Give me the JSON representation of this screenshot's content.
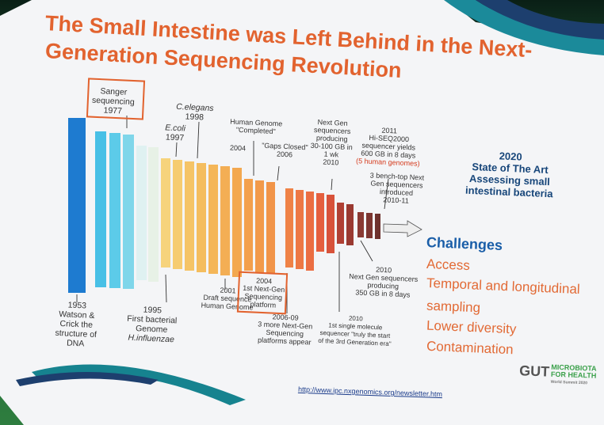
{
  "slide": {
    "title_line1": "The Small Intestine was Left Behind in the Next-",
    "title_line2": "Generation Sequencing Revolution",
    "url": "http://www.ipc.nxgenomics.org/newsletter.htm",
    "logo": {
      "text": "GUT",
      "sub1": "MICROBIOTA",
      "sub2": "FOR HEALTH",
      "sub3": "World Summit 2020"
    }
  },
  "timeline": {
    "sanger": [
      "Sanger",
      "sequencing",
      "1977"
    ],
    "celegans": [
      "C.elegans",
      "1998"
    ],
    "ecoli": [
      "E.coli",
      "1997"
    ],
    "human_genome_completed": [
      "Human Genome",
      "\"Completed\""
    ],
    "y2004": "2004",
    "gaps_closed": [
      "\"Gaps Closed\"",
      "2006"
    ],
    "next_gen_2010": [
      "Next Gen",
      "sequencers",
      "producing",
      "30-100 GB in",
      "1 wk",
      "2010"
    ],
    "hiseq": [
      "2011",
      "Hi-SEQ2000",
      "sequencer yields",
      "600 GB in 8 days"
    ],
    "hiseq_red": "(5 human genomes)",
    "benchtop": [
      "3 bench-top Next",
      "Gen sequencers",
      "introduced",
      "2010-11"
    ],
    "watson_crick": [
      "1953",
      "Watson &",
      "Crick the",
      "structure of",
      "DNA"
    ],
    "first_bacterial": [
      "1995",
      "First bacterial",
      "Genome"
    ],
    "h_influenzae": "H.influenzae",
    "draft_sequence": [
      "2001",
      "Draft sequence",
      "Human Genome"
    ],
    "first_ng_platform": [
      "2004",
      "1st Next-Gen",
      "Sequencing",
      "platform"
    ],
    "three_more": [
      "2006-09",
      "3 more Next-Gen",
      "Sequencing",
      "platforms appear"
    ],
    "single_molecule": [
      "2010",
      "1st single molecule",
      "sequencer \"truly the start",
      "of the 3rd Generation era\""
    ],
    "ng_350": [
      "2010",
      "Next Gen sequencers",
      "producing",
      "350 GB in 8 days"
    ]
  },
  "state_of_art": [
    "2020",
    "State of The Art",
    "Assessing small",
    "intestinal bacteria"
  ],
  "challenges": {
    "title": "Challenges",
    "items": [
      "Access",
      "Temporal and longitudinal",
      "sampling",
      "Lower diversity",
      "Contamination"
    ]
  },
  "colors": {
    "title": "#e2632f",
    "blue": "#17467a",
    "challenge": "#e26a35"
  }
}
